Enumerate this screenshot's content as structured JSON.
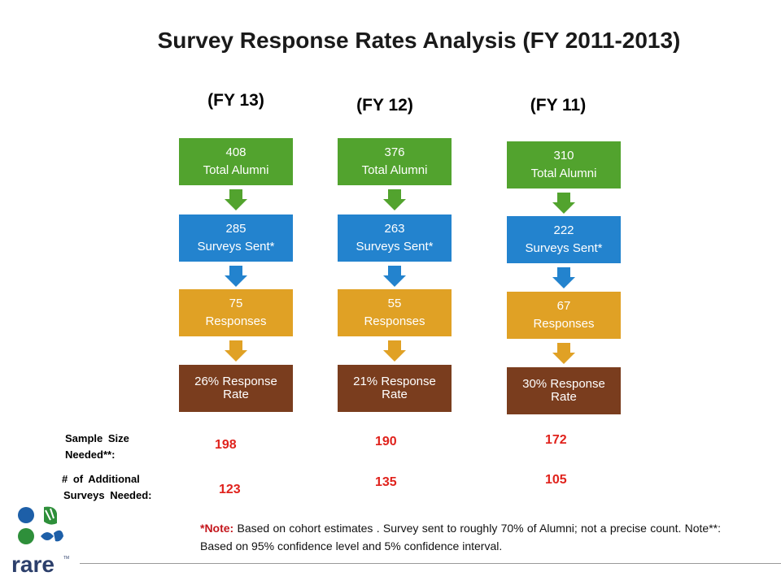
{
  "title": "Survey Response Rates Analysis (FY 2011-2013)",
  "columns": [
    {
      "header": "(FY 13)",
      "total_value": "408",
      "total_label": "Total Alumni",
      "sent_value": "285",
      "sent_label": "Surveys Sent*",
      "resp_value": "75",
      "resp_label": "Responses",
      "rate_label": "26% Response Rate",
      "sample_size": "198",
      "additional": "123"
    },
    {
      "header": "(FY 12)",
      "total_value": "376",
      "total_label": "Total Alumni",
      "sent_value": "263",
      "sent_label": "Surveys Sent*",
      "resp_value": "55",
      "resp_label": "Responses",
      "rate_label": "21% Response Rate",
      "sample_size": "190",
      "additional": "135"
    },
    {
      "header": "(FY 11)",
      "total_value": "310",
      "total_label": "Total Alumni",
      "sent_value": "222",
      "sent_label": "Surveys Sent*",
      "resp_value": "67",
      "resp_label": "Responses",
      "rate_label": "30% Response Rate",
      "sample_size": "172",
      "additional": "105"
    }
  ],
  "labels": {
    "sample_size_line1": "Sample Size",
    "sample_size_line2": "Needed**:",
    "additional_line1": "# of Additional",
    "additional_line2": "Surveys Needed:"
  },
  "note": {
    "prefix": "*Note:",
    "text": " Based on cohort estimates . Survey sent to roughly 70% of Alumni; not a precise count. Note**: Based on 95% confidence level and 5% confidence interval."
  },
  "logo": {
    "text": "rare",
    "tm": "TM"
  },
  "colors": {
    "total": "#52a32e",
    "sent": "#2383ce",
    "responses": "#e0a125",
    "rate": "#7a3d1e",
    "numbers": "#e0221c"
  }
}
